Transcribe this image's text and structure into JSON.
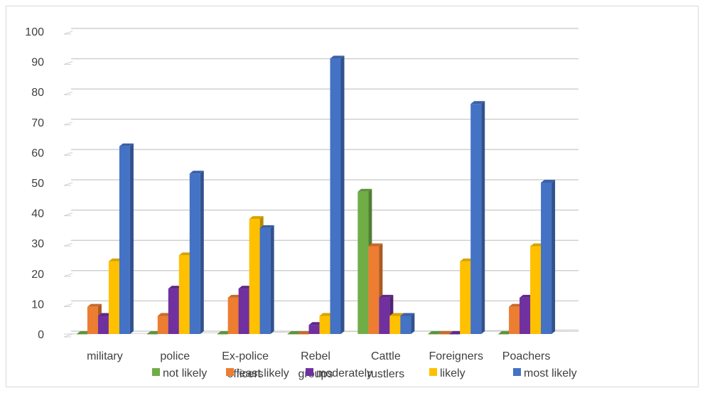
{
  "chart_data": {
    "type": "bar",
    "categories": [
      "military",
      "police",
      "Ex-police officers",
      "Rebel groups",
      "Cattle rustlers",
      "Foreigners",
      "Poachers"
    ],
    "series": [
      {
        "name": "not likely",
        "color": "#70ad47",
        "values": [
          0,
          0,
          0,
          0,
          47,
          0,
          0
        ]
      },
      {
        "name": "least likely",
        "color": "#ed7d31",
        "values": [
          9,
          6,
          12,
          0,
          29,
          0,
          9
        ]
      },
      {
        "name": "moderately",
        "color": "#7030a0",
        "values": [
          6,
          15,
          15,
          3,
          12,
          0,
          12
        ]
      },
      {
        "name": "likely",
        "color": "#ffc000",
        "values": [
          24,
          26,
          38,
          6,
          6,
          24,
          29
        ]
      },
      {
        "name": "most likely",
        "color": "#4472c4",
        "values": [
          62,
          53,
          35,
          91,
          6,
          76,
          50
        ]
      }
    ],
    "yticks": [
      0,
      10,
      20,
      30,
      40,
      50,
      60,
      70,
      80,
      90,
      100
    ],
    "ylim": [
      0,
      100
    ],
    "grid": true,
    "legend_position": "bottom",
    "style": "3d-clustered-column",
    "title": "",
    "xlabel": "",
    "ylabel": ""
  }
}
